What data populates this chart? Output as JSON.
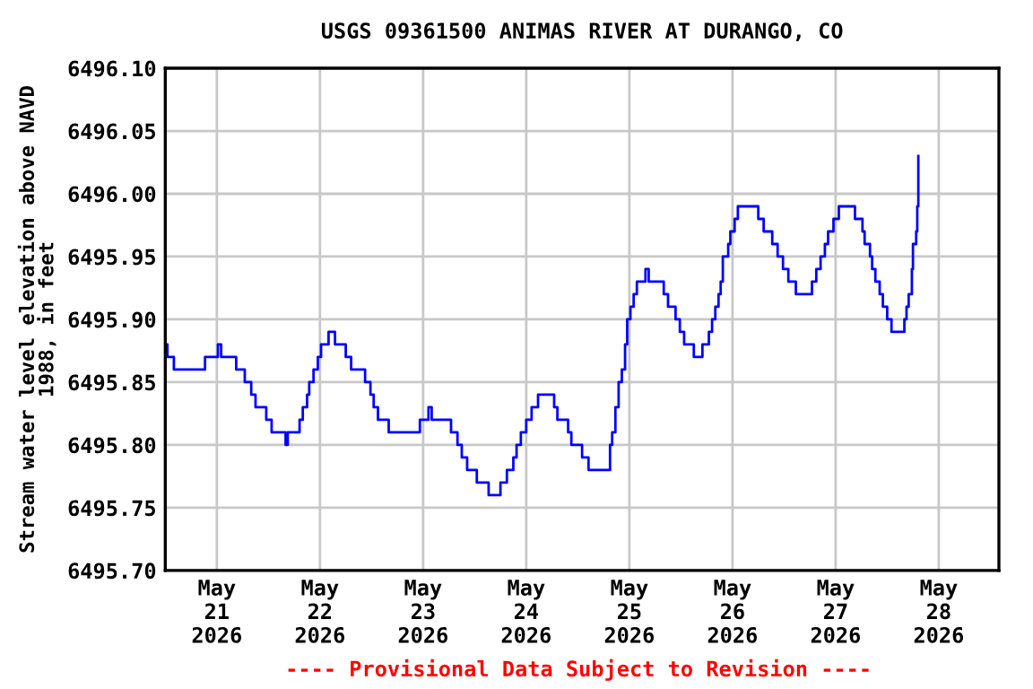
{
  "chart_data": {
    "type": "step",
    "title": "USGS 09361500 ANIMAS RIVER AT DURANGO, CO",
    "ylabel": "Stream water level elevation above NAVD\n1988, in feet",
    "annotations": [
      "---- Provisional Data Subject to Revision ----"
    ],
    "series": [
      {
        "color": "#0000ff",
        "x": [
          "2026-05-20T12:15",
          "2026-05-20T12:30",
          "2026-05-20T14:00",
          "2026-05-20T20:45",
          "2026-05-20T21:15",
          "2026-05-21T00:15",
          "2026-05-21T01:00",
          "2026-05-21T03:30",
          "2026-05-21T04:30",
          "2026-05-21T06:30",
          "2026-05-21T08:00",
          "2026-05-21T09:00",
          "2026-05-21T11:30",
          "2026-05-21T12:45",
          "2026-05-21T15:00",
          "2026-05-21T16:00",
          "2026-05-21T16:30",
          "2026-05-21T18:45",
          "2026-05-21T19:15",
          "2026-05-21T20:00",
          "2026-05-21T21:00",
          "2026-05-21T21:30",
          "2026-05-21T22:30",
          "2026-05-21T23:30",
          "2026-05-22T00:15",
          "2026-05-22T02:00",
          "2026-05-22T03:30",
          "2026-05-22T05:30",
          "2026-05-22T06:00",
          "2026-05-22T07:15",
          "2026-05-22T09:30",
          "2026-05-22T10:30",
          "2026-05-22T11:45",
          "2026-05-22T12:30",
          "2026-05-22T13:30",
          "2026-05-22T15:15",
          "2026-05-22T16:00",
          "2026-05-22T23:00",
          "2026-05-22T23:15",
          "2026-05-23T01:15",
          "2026-05-23T02:00",
          "2026-05-23T05:45",
          "2026-05-23T06:30",
          "2026-05-23T08:00",
          "2026-05-23T09:00",
          "2026-05-23T10:15",
          "2026-05-23T12:00",
          "2026-05-23T12:30",
          "2026-05-23T15:00",
          "2026-05-23T15:15",
          "2026-05-23T17:45",
          "2026-05-23T18:00",
          "2026-05-23T19:30",
          "2026-05-23T21:00",
          "2026-05-23T21:45",
          "2026-05-23T22:45",
          "2026-05-24T00:00",
          "2026-05-24T01:15",
          "2026-05-24T02:45",
          "2026-05-24T06:30",
          "2026-05-24T07:15",
          "2026-05-24T09:00",
          "2026-05-24T09:45",
          "2026-05-24T10:30",
          "2026-05-24T12:30",
          "2026-05-24T13:00",
          "2026-05-24T14:30",
          "2026-05-24T18:45",
          "2026-05-24T19:30",
          "2026-05-24T20:00",
          "2026-05-24T20:45",
          "2026-05-24T21:30",
          "2026-05-24T22:15",
          "2026-05-24T23:00",
          "2026-05-24T23:30",
          "2026-05-25T00:15",
          "2026-05-25T01:00",
          "2026-05-25T01:45",
          "2026-05-25T03:45",
          "2026-05-25T04:30",
          "2026-05-25T07:15",
          "2026-05-25T08:00",
          "2026-05-25T09:00",
          "2026-05-25T10:45",
          "2026-05-25T11:45",
          "2026-05-25T12:45",
          "2026-05-25T14:30",
          "2026-05-25T15:00",
          "2026-05-25T16:15",
          "2026-05-25T17:00",
          "2026-05-25T18:30",
          "2026-05-25T19:15",
          "2026-05-25T20:00",
          "2026-05-25T20:45",
          "2026-05-25T21:15",
          "2026-05-25T21:45",
          "2026-05-25T23:00",
          "2026-05-25T23:30",
          "2026-05-26T00:30",
          "2026-05-26T01:15",
          "2026-05-26T05:30",
          "2026-05-26T06:00",
          "2026-05-26T07:15",
          "2026-05-26T08:45",
          "2026-05-26T09:15",
          "2026-05-26T10:30",
          "2026-05-26T11:45",
          "2026-05-26T13:00",
          "2026-05-26T14:45",
          "2026-05-26T17:45",
          "2026-05-26T18:30",
          "2026-05-26T19:30",
          "2026-05-26T20:30",
          "2026-05-26T21:30",
          "2026-05-26T22:15",
          "2026-05-26T23:30",
          "2026-05-27T00:45",
          "2026-05-27T03:45",
          "2026-05-27T04:30",
          "2026-05-27T06:15",
          "2026-05-27T06:45",
          "2026-05-27T08:00",
          "2026-05-27T08:30",
          "2026-05-27T09:15",
          "2026-05-27T10:15",
          "2026-05-27T11:00",
          "2026-05-27T12:00",
          "2026-05-27T13:00",
          "2026-05-27T15:30",
          "2026-05-27T16:00",
          "2026-05-27T16:30",
          "2026-05-27T17:00",
          "2026-05-27T17:45",
          "2026-05-27T18:00",
          "2026-05-27T18:45",
          "2026-05-27T19:00",
          "2026-05-27T19:15"
        ],
        "values": [
          6495.88,
          6495.87,
          6495.86,
          6495.86,
          6495.87,
          6495.88,
          6495.87,
          6495.87,
          6495.86,
          6495.85,
          6495.84,
          6495.83,
          6495.82,
          6495.81,
          6495.81,
          6495.8,
          6495.81,
          6495.81,
          6495.82,
          6495.83,
          6495.84,
          6495.85,
          6495.86,
          6495.87,
          6495.88,
          6495.89,
          6495.88,
          6495.88,
          6495.87,
          6495.86,
          6495.86,
          6495.85,
          6495.84,
          6495.83,
          6495.82,
          6495.82,
          6495.81,
          6495.81,
          6495.82,
          6495.83,
          6495.82,
          6495.82,
          6495.81,
          6495.8,
          6495.79,
          6495.78,
          6495.78,
          6495.77,
          6495.77,
          6495.76,
          6495.76,
          6495.77,
          6495.78,
          6495.79,
          6495.8,
          6495.81,
          6495.82,
          6495.83,
          6495.84,
          6495.83,
          6495.82,
          6495.82,
          6495.81,
          6495.8,
          6495.8,
          6495.79,
          6495.78,
          6495.78,
          6495.8,
          6495.81,
          6495.83,
          6495.85,
          6495.86,
          6495.88,
          6495.9,
          6495.91,
          6495.92,
          6495.93,
          6495.94,
          6495.93,
          6495.93,
          6495.92,
          6495.91,
          6495.9,
          6495.89,
          6495.88,
          6495.88,
          6495.87,
          6495.87,
          6495.88,
          6495.89,
          6495.9,
          6495.91,
          6495.92,
          6495.93,
          6495.95,
          6495.96,
          6495.97,
          6495.98,
          6495.99,
          6495.99,
          6495.98,
          6495.97,
          6495.97,
          6495.96,
          6495.95,
          6495.94,
          6495.93,
          6495.92,
          6495.92,
          6495.93,
          6495.94,
          6495.95,
          6495.96,
          6495.97,
          6495.98,
          6495.99,
          6495.99,
          6495.98,
          6495.97,
          6495.96,
          6495.95,
          6495.94,
          6495.93,
          6495.92,
          6495.91,
          6495.9,
          6495.89,
          6495.89,
          6495.9,
          6495.91,
          6495.92,
          6495.94,
          6495.96,
          6495.97,
          6495.99,
          6496.03
        ]
      }
    ],
    "xlim": [
      "2026-05-20T12:00",
      "2026-05-28T14:00"
    ],
    "xticks": [
      {
        "value": "2026-05-21",
        "label": "May\n21\n2026"
      },
      {
        "value": "2026-05-22",
        "label": "May\n22\n2026"
      },
      {
        "value": "2026-05-23",
        "label": "May\n23\n2026"
      },
      {
        "value": "2026-05-24",
        "label": "May\n24\n2026"
      },
      {
        "value": "2026-05-25",
        "label": "May\n25\n2026"
      },
      {
        "value": "2026-05-26",
        "label": "May\n26\n2026"
      },
      {
        "value": "2026-05-27",
        "label": "May\n27\n2026"
      },
      {
        "value": "2026-05-28",
        "label": "May\n28\n2026"
      }
    ],
    "ylim": [
      6495.7,
      6496.1
    ],
    "yticks": [
      {
        "value": 6495.7,
        "label": "6495.70"
      },
      6495.75,
      {
        "value": 6495.8,
        "label": "6495.80"
      },
      6495.85,
      {
        "value": 6495.9,
        "label": "6495.90"
      },
      6495.95,
      {
        "value": 6496.0,
        "label": "6496.00"
      },
      6496.05,
      {
        "value": 6496.1,
        "label": "6496.10"
      }
    ],
    "grid": true
  }
}
